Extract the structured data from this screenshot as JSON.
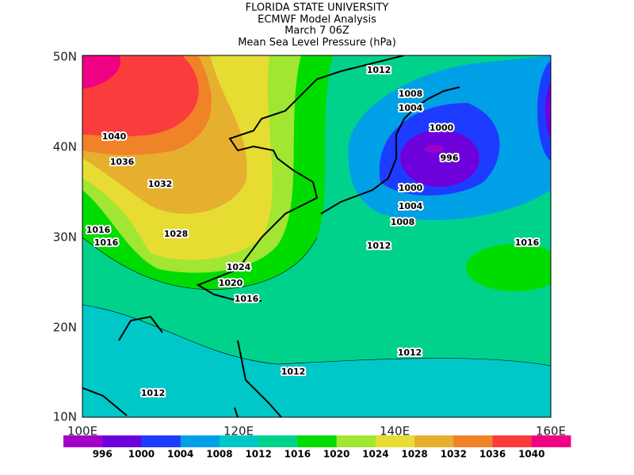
{
  "header": {
    "lines": [
      "FLORIDA STATE UNIVERSITY",
      "ECMWF Model Analysis",
      "March 7 06Z",
      "Mean Sea Level Pressure (hPa)"
    ]
  },
  "map": {
    "lat_labels": [
      "50N",
      "40N",
      "30N",
      "20N",
      "10N"
    ],
    "lon_labels": [
      "100E",
      "120E",
      "140E",
      "160E"
    ],
    "contour_labels": [
      "1012",
      "1008",
      "1004",
      "1000",
      "996",
      "1000",
      "1004",
      "1008",
      "1012",
      "1016",
      "1040",
      "1036",
      "1032",
      "1028",
      "1016",
      "1016",
      "1024",
      "1020",
      "1016",
      "1012",
      "1012",
      "1012"
    ]
  },
  "colorbar": {
    "labels": [
      "996",
      "1000",
      "1004",
      "1008",
      "1012",
      "1016",
      "1020",
      "1024",
      "1028",
      "1032",
      "1036",
      "1040"
    ],
    "colors": [
      "#a000c8",
      "#6e00dc",
      "#1e3cff",
      "#00a0e6",
      "#00c8c8",
      "#00d28c",
      "#00dc00",
      "#a0e632",
      "#e6dc32",
      "#e6af2d",
      "#f08228",
      "#fa3c3c",
      "#f00082"
    ]
  }
}
